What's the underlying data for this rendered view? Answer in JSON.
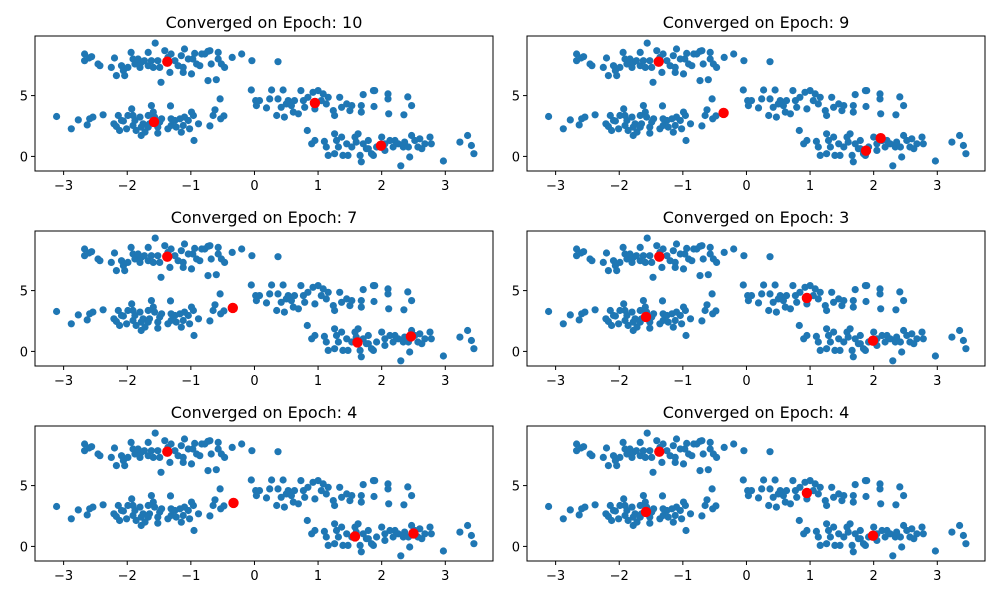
{
  "chart_data": {
    "type": "scatter",
    "layout": "3x2 grid of subplots",
    "shared": {
      "xlim": [
        -3.45,
        3.75
      ],
      "ylim": [
        -1.2,
        9.9
      ],
      "xticks": [
        -3,
        -2,
        -1,
        0,
        1,
        2,
        3
      ],
      "xtick_labels": [
        "−3",
        "−2",
        "−1",
        "0",
        "1",
        "2",
        "3"
      ],
      "yticks": [
        0,
        5
      ],
      "ytick_labels": [
        "0",
        "5"
      ],
      "grid": false,
      "point_color": "#1f77b4",
      "centroid_color": "#ff0000",
      "points": [
        [
          -2.67,
          8.42
        ],
        [
          -2.67,
          7.87
        ],
        [
          -2.6,
          8.09
        ],
        [
          -2.56,
          8.2
        ],
        [
          -2.46,
          7.6
        ],
        [
          -2.43,
          7.46
        ],
        [
          -2.25,
          7.32
        ],
        [
          -2.2,
          8.09
        ],
        [
          -2.09,
          7.46
        ],
        [
          -2.06,
          7.05
        ],
        [
          -2.04,
          6.64
        ],
        [
          -1.94,
          8.55
        ],
        [
          -1.91,
          8.01
        ],
        [
          -1.88,
          7.6
        ],
        [
          -1.83,
          8.01
        ],
        [
          -1.8,
          7.32
        ],
        [
          -1.78,
          7.73
        ],
        [
          -1.67,
          8.55
        ],
        [
          -1.67,
          7.46
        ],
        [
          -1.62,
          7.87
        ],
        [
          -1.59,
          7.32
        ],
        [
          -1.56,
          9.32
        ],
        [
          -1.52,
          7.87
        ],
        [
          -1.47,
          6.09
        ],
        [
          -1.49,
          7.32
        ],
        [
          -1.41,
          8.69
        ],
        [
          -1.36,
          8.14
        ],
        [
          -1.33,
          6.91
        ],
        [
          -1.31,
          8.42
        ],
        [
          -1.25,
          7.87
        ],
        [
          -1.2,
          7.46
        ],
        [
          -1.15,
          8.28
        ],
        [
          -1.12,
          7.32
        ],
        [
          -1.12,
          6.91
        ],
        [
          -1.1,
          8.83
        ],
        [
          -1.04,
          8.01
        ],
        [
          -0.99,
          6.78
        ],
        [
          -0.97,
          8.01
        ],
        [
          -0.94,
          8.47
        ],
        [
          -0.91,
          7.6
        ],
        [
          -0.86,
          7.46
        ],
        [
          -0.83,
          8.42
        ],
        [
          -0.78,
          8.42
        ],
        [
          -0.73,
          8.64
        ],
        [
          -0.7,
          8.69
        ],
        [
          -0.68,
          7.6
        ],
        [
          -0.57,
          8.55
        ],
        [
          -0.57,
          8.01
        ],
        [
          -0.52,
          7.6
        ],
        [
          -0.47,
          7.32
        ],
        [
          -0.35,
          8.14
        ],
        [
          -0.2,
          8.42
        ],
        [
          -0.04,
          7.87
        ],
        [
          -0.73,
          6.23
        ],
        [
          -0.6,
          6.31
        ],
        [
          0.37,
          7.79
        ],
        [
          -2.17,
          6.64
        ],
        [
          -1.99,
          7.32
        ],
        [
          -1.73,
          7.87
        ],
        [
          -3.11,
          3.28
        ],
        [
          -2.88,
          2.27
        ],
        [
          -2.77,
          3.0
        ],
        [
          -2.63,
          2.59
        ],
        [
          -2.59,
          3.09
        ],
        [
          -2.54,
          3.23
        ],
        [
          -2.38,
          3.42
        ],
        [
          -2.21,
          2.68
        ],
        [
          -2.17,
          2.46
        ],
        [
          -2.14,
          3.36
        ],
        [
          -2.12,
          2.13
        ],
        [
          -2.06,
          2.91
        ],
        [
          -2.01,
          2.27
        ],
        [
          -1.99,
          3.36
        ],
        [
          -1.93,
          3.91
        ],
        [
          -1.91,
          2.54
        ],
        [
          -1.88,
          2.95
        ],
        [
          -1.86,
          2.13
        ],
        [
          -1.8,
          3.23
        ],
        [
          -1.78,
          1.72
        ],
        [
          -1.75,
          2.68
        ],
        [
          -1.72,
          2.0
        ],
        [
          -1.67,
          3.36
        ],
        [
          -1.65,
          2.68
        ],
        [
          -1.62,
          4.18
        ],
        [
          -1.59,
          3.64
        ],
        [
          -1.57,
          3.23
        ],
        [
          -1.52,
          2.41
        ],
        [
          -1.52,
          1.91
        ],
        [
          -1.46,
          3.09
        ],
        [
          -1.36,
          2.27
        ],
        [
          -1.32,
          4.15
        ],
        [
          -1.31,
          3.09
        ],
        [
          -1.25,
          2.95
        ],
        [
          -1.23,
          2.41
        ],
        [
          -1.17,
          3.09
        ],
        [
          -1.15,
          1.99
        ],
        [
          -1.12,
          2.54
        ],
        [
          -1.1,
          3.23
        ],
        [
          -1.04,
          2.95
        ],
        [
          -1.02,
          2.27
        ],
        [
          -0.99,
          3.64
        ],
        [
          -0.96,
          3.36
        ],
        [
          -0.95,
          1.31
        ],
        [
          -0.88,
          2.68
        ],
        [
          -0.7,
          2.51
        ],
        [
          -0.65,
          3.36
        ],
        [
          -0.62,
          3.83
        ],
        [
          -0.54,
          4.73
        ],
        [
          -0.53,
          3.09
        ],
        [
          -0.48,
          3.33
        ],
        [
          -1.31,
          2.54
        ],
        [
          -1.49,
          2.82
        ],
        [
          -1.67,
          2.41
        ],
        [
          -1.91,
          3.36
        ],
        [
          -2.09,
          2.95
        ],
        [
          -1.78,
          2.41
        ],
        [
          -0.05,
          5.46
        ],
        [
          0.02,
          4.59
        ],
        [
          0.03,
          4.18
        ],
        [
          0.08,
          4.59
        ],
        [
          0.19,
          3.99
        ],
        [
          0.24,
          4.73
        ],
        [
          0.27,
          5.46
        ],
        [
          0.35,
          3.36
        ],
        [
          0.37,
          4.73
        ],
        [
          0.42,
          4.04
        ],
        [
          0.45,
          5.46
        ],
        [
          0.47,
          3.23
        ],
        [
          0.5,
          4.32
        ],
        [
          0.53,
          4.59
        ],
        [
          0.58,
          4.18
        ],
        [
          0.61,
          3.64
        ],
        [
          0.63,
          4.59
        ],
        [
          0.69,
          3.5
        ],
        [
          0.73,
          5.41
        ],
        [
          0.77,
          4.59
        ],
        [
          0.79,
          4.04
        ],
        [
          0.84,
          4.86
        ],
        [
          0.92,
          5.27
        ],
        [
          0.95,
          3.91
        ],
        [
          1.0,
          5.41
        ],
        [
          1.05,
          4.59
        ],
        [
          1.08,
          5.14
        ],
        [
          1.13,
          4.32
        ],
        [
          1.16,
          4.86
        ],
        [
          1.24,
          3.77
        ],
        [
          1.26,
          3.36
        ],
        [
          1.34,
          4.86
        ],
        [
          1.37,
          4.04
        ],
        [
          1.45,
          4.32
        ],
        [
          1.5,
          3.77
        ],
        [
          1.53,
          4.18
        ],
        [
          1.68,
          4.18
        ],
        [
          1.71,
          5.08
        ],
        [
          1.68,
          3.64
        ],
        [
          1.87,
          5.41
        ],
        [
          1.88,
          4.1
        ],
        [
          1.89,
          5.41
        ],
        [
          2.1,
          5.14
        ],
        [
          2.1,
          4.73
        ],
        [
          2.11,
          3.5
        ],
        [
          2.35,
          3.42
        ],
        [
          2.41,
          4.89
        ],
        [
          2.47,
          4.18
        ],
        [
          0.83,
          2.13
        ],
        [
          0.9,
          1.04
        ],
        [
          0.95,
          1.31
        ],
        [
          1.1,
          1.23
        ],
        [
          1.13,
          0.77
        ],
        [
          1.16,
          0.08
        ],
        [
          1.26,
          1.86
        ],
        [
          1.29,
          1.31
        ],
        [
          1.32,
          0.77
        ],
        [
          1.37,
          1.59
        ],
        [
          1.39,
          0.08
        ],
        [
          1.45,
          1.04
        ],
        [
          1.47,
          0.08
        ],
        [
          1.53,
          0.77
        ],
        [
          1.58,
          1.59
        ],
        [
          1.6,
          1.18
        ],
        [
          1.63,
          1.86
        ],
        [
          1.66,
          0.08
        ],
        [
          1.68,
          -0.44
        ],
        [
          1.71,
          1.04
        ],
        [
          1.76,
          0.63
        ],
        [
          1.79,
          1.31
        ],
        [
          1.84,
          0.22
        ],
        [
          1.87,
          0.08
        ],
        [
          1.92,
          0.77
        ],
        [
          2.0,
          1.59
        ],
        [
          2.05,
          1.04
        ],
        [
          2.13,
          1.31
        ],
        [
          2.18,
          0.77
        ],
        [
          2.21,
          1.31
        ],
        [
          2.26,
          1.04
        ],
        [
          2.3,
          -0.77
        ],
        [
          2.34,
          0.77
        ],
        [
          2.36,
          1.18
        ],
        [
          2.42,
          0.77
        ],
        [
          2.44,
          -0.05
        ],
        [
          2.47,
          1.72
        ],
        [
          2.52,
          1.31
        ],
        [
          2.57,
          0.77
        ],
        [
          2.6,
          1.45
        ],
        [
          2.68,
          1.04
        ],
        [
          2.76,
          1.59
        ],
        [
          2.78,
          1.04
        ],
        [
          2.97,
          -0.38
        ],
        [
          3.23,
          1.18
        ],
        [
          3.35,
          1.72
        ],
        [
          3.41,
          0.9
        ],
        [
          3.45,
          0.22
        ],
        [
          1.26,
          0.22
        ],
        [
          2.05,
          0.49
        ],
        [
          1.79,
          0.63
        ],
        [
          2.63,
          0.63
        ]
      ]
    },
    "subplots": [
      {
        "title": "Converged on Epoch: 10",
        "centroids": [
          [
            -1.37,
            7.79
          ],
          [
            -1.58,
            2.84
          ],
          [
            0.95,
            4.4
          ],
          [
            1.99,
            0.88
          ]
        ]
      },
      {
        "title": "Converged on Epoch: 9",
        "centroids": [
          [
            -1.38,
            7.79
          ],
          [
            -0.36,
            3.58
          ],
          [
            1.88,
            0.47
          ],
          [
            2.11,
            1.5
          ]
        ]
      },
      {
        "title": "Converged on Epoch: 7",
        "centroids": [
          [
            -1.37,
            7.79
          ],
          [
            -0.34,
            3.58
          ],
          [
            1.62,
            0.74
          ],
          [
            2.46,
            1.23
          ]
        ]
      },
      {
        "title": "Converged on Epoch: 3",
        "centroids": [
          [
            -1.37,
            7.79
          ],
          [
            -1.58,
            2.84
          ],
          [
            0.95,
            4.4
          ],
          [
            1.99,
            0.88
          ]
        ]
      },
      {
        "title": "Converged on Epoch: 4",
        "centroids": [
          [
            -1.37,
            7.79
          ],
          [
            -0.33,
            3.58
          ],
          [
            1.58,
            0.82
          ],
          [
            2.5,
            1.07
          ]
        ]
      },
      {
        "title": "Converged on Epoch: 4",
        "centroids": [
          [
            -1.37,
            7.79
          ],
          [
            -1.58,
            2.84
          ],
          [
            0.95,
            4.4
          ],
          [
            1.99,
            0.88
          ]
        ]
      }
    ]
  }
}
